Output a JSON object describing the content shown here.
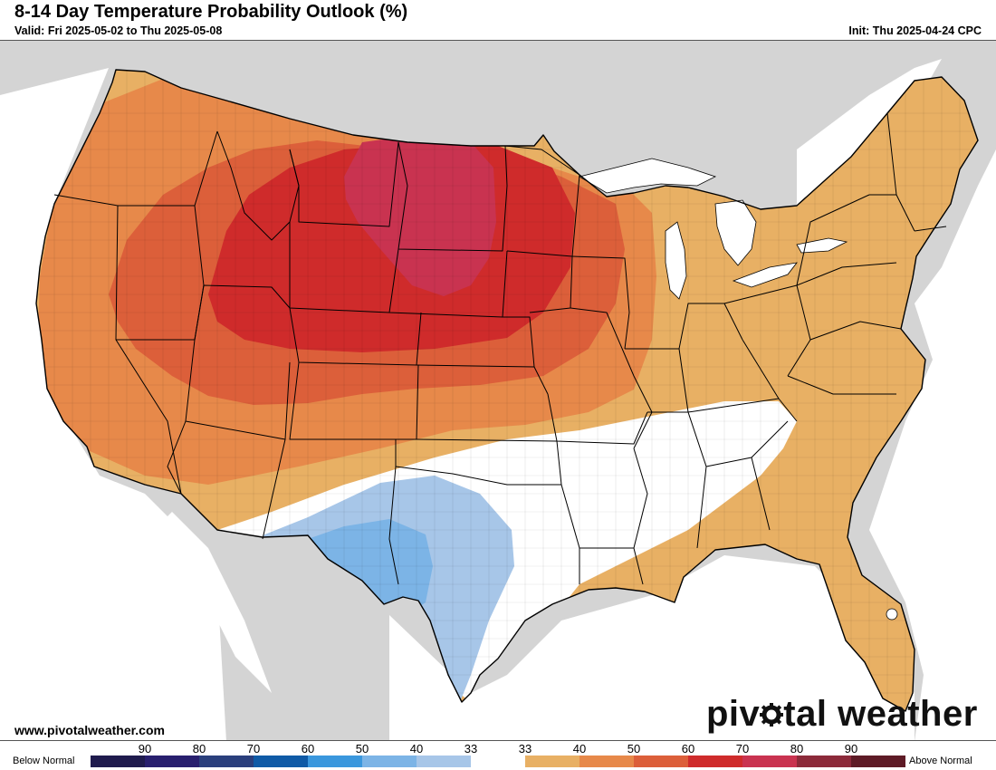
{
  "header": {
    "title": "8-14 Day Temperature Probability Outlook (%)",
    "valid": "Valid: Fri 2025-05-02 to Thu 2025-05-08",
    "init": "Init: Thu 2025-04-24 CPC"
  },
  "footer": {
    "website": "www.pivotalweather.com",
    "brand_before": "piv",
    "brand_after": "tal weather"
  },
  "legend": {
    "below_label": "Below Normal",
    "above_label": "Above Normal",
    "swatches": [
      {
        "label": "90",
        "color": "#1f1b4d"
      },
      {
        "label": "80",
        "color": "#281f6e"
      },
      {
        "label": "70",
        "color": "#2a3f7c"
      },
      {
        "label": "60",
        "color": "#0f5aa6"
      },
      {
        "label": "50",
        "color": "#3a97dd"
      },
      {
        "label": "40",
        "color": "#7cb4e6"
      },
      {
        "label": "33",
        "color": "#a7c6e8"
      },
      {
        "label": "33",
        "color": "#ffffff"
      },
      {
        "label": "40",
        "color": "#e8b064"
      },
      {
        "label": "50",
        "color": "#e7894a"
      },
      {
        "label": "60",
        "color": "#dc5f3a"
      },
      {
        "label": "70",
        "color": "#cf2b2b"
      },
      {
        "label": "80",
        "color": "#c93350"
      },
      {
        "label": "90",
        "color": "#8c2a3a"
      },
      {
        "label": "",
        "color": "#5e1b26"
      }
    ]
  },
  "map": {
    "colors": {
      "land_outside": "#d4d4d4",
      "water": "#ffffff",
      "above_40": "#e8b064",
      "above_50": "#e7894a",
      "above_60": "#dc5f3a",
      "above_70": "#cf2b2b",
      "above_80": "#c93350",
      "below_40": "#a7c6e8",
      "below_50": "#7cb4e6",
      "near_normal": "#ffffff"
    }
  }
}
